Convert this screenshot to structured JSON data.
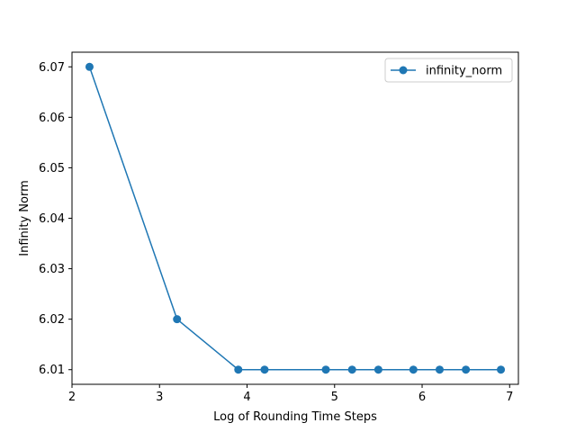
{
  "chart_data": {
    "type": "line",
    "xlabel": "Log of Rounding Time Steps",
    "ylabel": "Infinity Norm",
    "xlim": [
      2.0,
      7.1
    ],
    "ylim": [
      6.0071,
      6.0729
    ],
    "xticks": [
      2,
      3,
      4,
      5,
      6,
      7
    ],
    "xtick_labels": [
      "2",
      "3",
      "4",
      "5",
      "6",
      "7"
    ],
    "yticks": [
      6.01,
      6.02,
      6.03,
      6.04,
      6.05,
      6.06,
      6.07
    ],
    "ytick_labels": [
      "6.01",
      "6.02",
      "6.03",
      "6.04",
      "6.05",
      "6.06",
      "6.07"
    ],
    "grid": false,
    "legend_position": "upper right",
    "series": [
      {
        "name": "infinity_norm",
        "color": "#1f77b4",
        "marker": "circle",
        "x": [
          2.2,
          3.2,
          3.9,
          4.2,
          4.9,
          5.2,
          5.5,
          5.9,
          6.2,
          6.5,
          6.9
        ],
        "y": [
          6.07,
          6.02,
          6.01,
          6.01,
          6.01,
          6.01,
          6.01,
          6.01,
          6.01,
          6.01,
          6.01
        ]
      }
    ]
  }
}
